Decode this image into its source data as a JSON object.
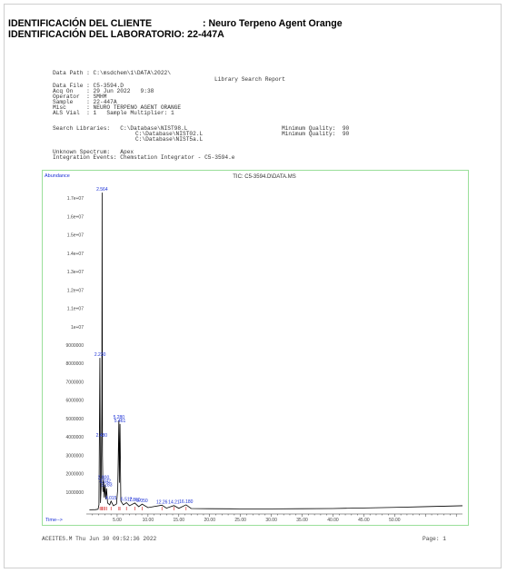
{
  "header": {
    "client_label": "IDENTIFICACIÓN DEL CLIENTE",
    "client_sep": ":",
    "client_value": "Neuro Terpeno Agent Orange",
    "lab_label": "IDENTIFICACIÓN DEL LABORATORIO:",
    "lab_value": "22-447A"
  },
  "report": {
    "data_path": "Data Path : C:\\msdchem\\1\\DATA\\2022\\",
    "title": "Library Search Report",
    "data_file": "Data File : C5-3594.D",
    "acq_on": "Acq On    : 29 Jun 2022   9:38",
    "operator": "Operator  : SMHM",
    "sample": "Sample    : 22-447A",
    "misc": "Misc      : NEURO TERPENO AGENT ORANGE",
    "als_vial": "ALS Vial  : 1   Sample Multiplier: 1",
    "search_lib_1": "Search Libraries:   C:\\Database\\NIST98.L",
    "search_lib_2": "C:\\Database\\NIST02.L",
    "search_lib_3": "C:\\Database\\NIST5a.L",
    "quality_1": "Minimum Quality:  90",
    "quality_2": "Minimum Quality:  90",
    "unknown": "Unknown Spectrum:   Apex",
    "integration": "Integration Events: Chemstation Integrator - C5-3594.e"
  },
  "chart_data": {
    "type": "line",
    "title": "TIC: C5-3594.D\\DATA.MS",
    "ylabel": "Abundance",
    "xlabel": "Time-->",
    "xlim": [
      0,
      61
    ],
    "ylim": [
      0,
      17800000
    ],
    "xticks": [
      "5.00",
      "10.00",
      "15.00",
      "20.00",
      "25.00",
      "30.00",
      "35.00",
      "40.00",
      "45.00",
      "50.00"
    ],
    "yticks": [
      "1000000",
      "2000000",
      "3000000",
      "4000000",
      "5000000",
      "6000000",
      "7000000",
      "8000000",
      "9000000",
      "1e+07",
      "1.1e+07",
      "1.2e+07",
      "1.3e+07",
      "1.4e+07",
      "1.5e+07",
      "1.6e+07",
      "1.7e+07"
    ],
    "peak_labels": [
      {
        "t": 2.56,
        "y": 17300000,
        "label": "2.564"
      },
      {
        "t": 2.23,
        "y": 8300000,
        "label": "2.230"
      },
      {
        "t": 2.48,
        "y": 3900000,
        "label": "2.480"
      },
      {
        "t": 5.28,
        "y": 4900000,
        "label": "5.280"
      },
      {
        "t": 5.46,
        "y": 4700000,
        "label": "5.461"
      },
      {
        "t": 2.8,
        "y": 1600000,
        "label": "2.800"
      },
      {
        "t": 3.04,
        "y": 1400000,
        "label": "3.042"
      },
      {
        "t": 3.28,
        "y": 1200000,
        "label": "3.283"
      },
      {
        "t": 4.01,
        "y": 500000,
        "label": "4.015"
      },
      {
        "t": 6.51,
        "y": 420000,
        "label": "6.512"
      },
      {
        "t": 7.86,
        "y": 400000,
        "label": "7.860"
      },
      {
        "t": 9.05,
        "y": 340000,
        "label": "9.050"
      },
      {
        "t": 12.26,
        "y": 280000,
        "label": "12.26"
      },
      {
        "t": 14.21,
        "y": 260000,
        "label": "14.21"
      },
      {
        "t": 16.18,
        "y": 300000,
        "label": "16.180"
      }
    ],
    "series": [
      {
        "points": [
          [
            0.5,
            30000
          ],
          [
            1.5,
            40000
          ],
          [
            1.9,
            60000
          ],
          [
            2.05,
            300000
          ],
          [
            2.2,
            8300000
          ],
          [
            2.3,
            400000
          ],
          [
            2.4,
            1200000
          ],
          [
            2.48,
            3900000
          ],
          [
            2.52,
            6000000
          ],
          [
            2.56,
            17300000
          ],
          [
            2.62,
            3000000
          ],
          [
            2.7,
            1000000
          ],
          [
            2.8,
            1600000
          ],
          [
            2.9,
            700000
          ],
          [
            3.04,
            1400000
          ],
          [
            3.15,
            600000
          ],
          [
            3.28,
            1200000
          ],
          [
            3.45,
            400000
          ],
          [
            3.8,
            300000
          ],
          [
            4.01,
            500000
          ],
          [
            4.4,
            250000
          ],
          [
            4.9,
            350000
          ],
          [
            5.1,
            1200000
          ],
          [
            5.28,
            4900000
          ],
          [
            5.36,
            1500000
          ],
          [
            5.46,
            4700000
          ],
          [
            5.6,
            500000
          ],
          [
            6.0,
            300000
          ],
          [
            6.51,
            420000
          ],
          [
            7.0,
            250000
          ],
          [
            7.86,
            400000
          ],
          [
            8.5,
            200000
          ],
          [
            9.05,
            340000
          ],
          [
            10.0,
            150000
          ],
          [
            12.26,
            280000
          ],
          [
            13.0,
            120000
          ],
          [
            14.21,
            260000
          ],
          [
            15.0,
            110000
          ],
          [
            16.18,
            300000
          ],
          [
            17.0,
            100000
          ],
          [
            20.0,
            90000
          ],
          [
            25.0,
            80000
          ],
          [
            30.0,
            80000
          ],
          [
            35.0,
            90000
          ],
          [
            40.0,
            100000
          ],
          [
            45.0,
            130000
          ],
          [
            50.0,
            160000
          ],
          [
            55.0,
            200000
          ],
          [
            61.0,
            250000
          ]
        ]
      }
    ]
  },
  "footer": {
    "left": "ACEITES.M Thu Jun 30 09:52:36 2022",
    "right": "Page: 1"
  },
  "colors": {
    "trace": "#000000",
    "labels": "#1a2fd6",
    "peak_ticks": "#d01616",
    "frame": "#9adf9a"
  }
}
